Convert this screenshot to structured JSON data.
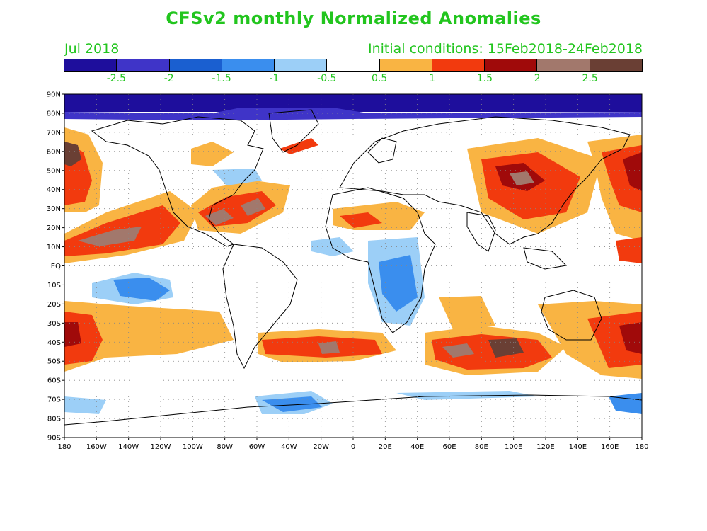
{
  "title": "CFSv2 monthly Normalized Anomalies",
  "month_label": "Jul 2018",
  "init_label": "Initial conditions: 15Feb2018-24Feb2018",
  "colorbar": {
    "colors": [
      "#1e0e9c",
      "#3f34c8",
      "#1a5fd0",
      "#3a8eee",
      "#9ccff7",
      "#ffffff",
      "#f9b443",
      "#f23a0e",
      "#a00a0a",
      "#a2786c",
      "#6a3f34"
    ],
    "labels": [
      "-2.5",
      "-2",
      "-1.5",
      "-1",
      "-0.5",
      "0.5",
      "1",
      "1.5",
      "2",
      "2.5"
    ]
  },
  "map": {
    "lat_labels": [
      "90N",
      "80N",
      "70N",
      "60N",
      "50N",
      "40N",
      "30N",
      "20N",
      "10N",
      "EQ",
      "10S",
      "20S",
      "30S",
      "40S",
      "50S",
      "60S",
      "70S",
      "80S",
      "90S"
    ],
    "lon_labels": [
      "180",
      "160W",
      "140W",
      "120W",
      "100W",
      "80W",
      "60W",
      "40W",
      "20W",
      "0",
      "20E",
      "40E",
      "60E",
      "80E",
      "100E",
      "120E",
      "140E",
      "160E",
      "180"
    ]
  }
}
